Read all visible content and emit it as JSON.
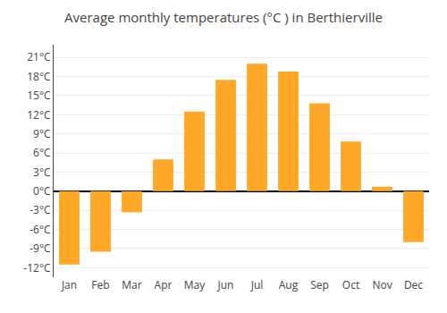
{
  "chart_data": {
    "type": "bar",
    "title": "Average monthly temperatures (°C ) in Berthierville",
    "categories": [
      "Jan",
      "Feb",
      "Mar",
      "Apr",
      "May",
      "Jun",
      "Jul",
      "Aug",
      "Sep",
      "Oct",
      "Nov",
      "Dec"
    ],
    "values": [
      -11.5,
      -9.5,
      -3.3,
      5.0,
      12.5,
      17.5,
      20.0,
      18.8,
      13.8,
      7.8,
      0.7,
      -8.0
    ],
    "color": "#FFA726",
    "ylim": [
      -13.5,
      23
    ],
    "yticks": [
      {
        "value": -12,
        "label": "-12°C"
      },
      {
        "value": -9,
        "label": "-9°C"
      },
      {
        "value": -6,
        "label": "-6°C"
      },
      {
        "value": -3,
        "label": "-3°C"
      },
      {
        "value": 0,
        "label": "0°C"
      },
      {
        "value": 3,
        "label": "3°C"
      },
      {
        "value": 6,
        "label": "6°C"
      },
      {
        "value": 9,
        "label": "9°C"
      },
      {
        "value": 12,
        "label": "12°C"
      },
      {
        "value": 15,
        "label": "15°C"
      },
      {
        "value": 18,
        "label": "18°C"
      },
      {
        "value": 21,
        "label": "21°C"
      }
    ],
    "grid": true
  }
}
